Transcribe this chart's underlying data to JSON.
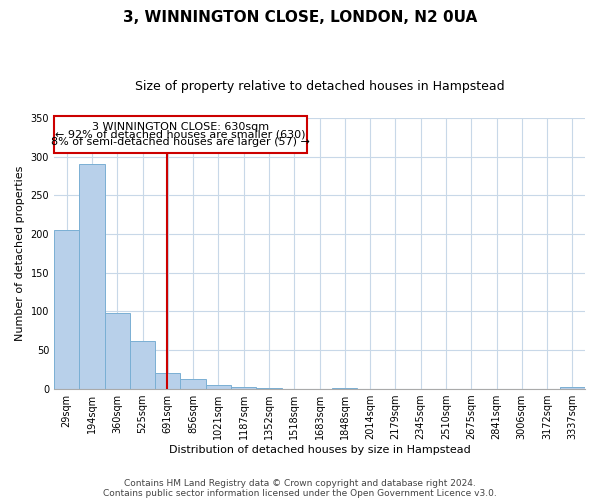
{
  "title": "3, WINNINGTON CLOSE, LONDON, N2 0UA",
  "subtitle": "Size of property relative to detached houses in Hampstead",
  "xlabel": "Distribution of detached houses by size in Hampstead",
  "ylabel": "Number of detached properties",
  "bar_labels": [
    "29sqm",
    "194sqm",
    "360sqm",
    "525sqm",
    "691sqm",
    "856sqm",
    "1021sqm",
    "1187sqm",
    "1352sqm",
    "1518sqm",
    "1683sqm",
    "1848sqm",
    "2014sqm",
    "2179sqm",
    "2345sqm",
    "2510sqm",
    "2675sqm",
    "2841sqm",
    "3006sqm",
    "3172sqm",
    "3337sqm"
  ],
  "bar_heights": [
    205,
    290,
    98,
    62,
    21,
    13,
    5,
    2,
    1,
    0,
    0,
    1,
    0,
    0,
    0,
    0,
    0,
    0,
    0,
    0,
    2
  ],
  "bar_color_normal": "#b8d0ea",
  "bar_edge_color": "#7aafd4",
  "bar_color_highlight": "#cc0000",
  "highlight_index": 4,
  "annotation_line1": "3 WINNINGTON CLOSE: 630sqm",
  "annotation_line2": "← 92% of detached houses are smaller (630)",
  "annotation_line3": "8% of semi-detached houses are larger (57) →",
  "vline_x": 3.97,
  "ylim": [
    0,
    350
  ],
  "yticks": [
    0,
    50,
    100,
    150,
    200,
    250,
    300,
    350
  ],
  "footer_line1": "Contains HM Land Registry data © Crown copyright and database right 2024.",
  "footer_line2": "Contains public sector information licensed under the Open Government Licence v3.0.",
  "bg_color": "#ffffff",
  "grid_color": "#c8d8e8",
  "title_fontsize": 11,
  "subtitle_fontsize": 9,
  "axis_label_fontsize": 8,
  "tick_fontsize": 7,
  "annotation_fontsize": 8,
  "footer_fontsize": 6.5
}
